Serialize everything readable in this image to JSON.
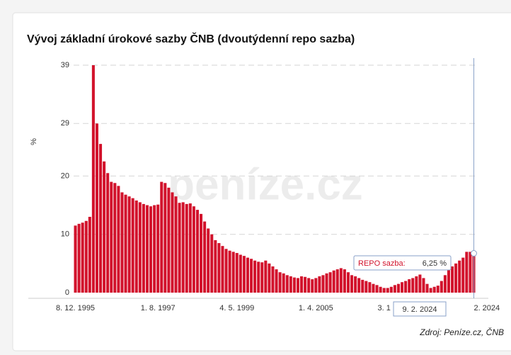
{
  "chart_data": {
    "type": "bar",
    "title": "Vývoj základní úrokové sazby ČNB (dvoutýdenní repo sazba)",
    "y_label": "%",
    "watermark": "peníze.cz",
    "source": "Zdroj: Peníze.cz, ČNB",
    "color": "#d2132c",
    "grid": true,
    "ylim": [
      0,
      39
    ],
    "yticks": [
      0,
      10,
      20,
      29,
      39
    ],
    "categories": [
      "8. 12. 1995",
      null,
      null,
      null,
      null,
      null,
      null,
      null,
      null,
      null,
      null,
      null,
      null,
      null,
      null,
      null,
      null,
      null,
      null,
      null,
      null,
      null,
      null,
      "1. 8. 1997",
      null,
      null,
      null,
      null,
      null,
      null,
      null,
      null,
      null,
      null,
      null,
      null,
      null,
      null,
      null,
      null,
      null,
      null,
      null,
      null,
      null,
      "4. 5. 1999",
      null,
      null,
      null,
      null,
      null,
      null,
      null,
      null,
      null,
      null,
      null,
      null,
      null,
      null,
      null,
      null,
      null,
      null,
      null,
      null,
      null,
      "1. 4. 2005",
      null,
      null,
      null,
      null,
      null,
      null,
      null,
      null,
      null,
      null,
      null,
      null,
      null,
      null,
      null,
      null,
      null,
      null,
      "3. 1",
      null,
      null,
      null,
      null,
      null,
      null,
      null,
      null,
      null,
      null,
      null,
      null,
      null,
      null,
      null,
      null,
      null,
      null,
      null,
      null,
      null,
      null,
      null,
      null,
      "2. 2024"
    ],
    "values": [
      11.5,
      11.8,
      12,
      12.3,
      13,
      39,
      29,
      25.5,
      22.5,
      20.5,
      19,
      18.8,
      18.3,
      17.2,
      16.8,
      16.5,
      16.2,
      15.8,
      15.5,
      15.2,
      15,
      14.8,
      15,
      15.1,
      19,
      18.8,
      18,
      17.2,
      16.5,
      15.4,
      15.5,
      15.2,
      15.3,
      14.8,
      14.2,
      13.5,
      12.2,
      11,
      10,
      9,
      8.5,
      8,
      7.5,
      7.2,
      7,
      6.8,
      6.5,
      6.3,
      6,
      5.8,
      5.5,
      5.3,
      5.2,
      5.5,
      5,
      4.5,
      4,
      3.5,
      3.3,
      3,
      2.8,
      2.6,
      2.5,
      2.8,
      2.7,
      2.5,
      2.3,
      2.5,
      2.8,
      3,
      3.3,
      3.5,
      3.8,
      4,
      4.2,
      4,
      3.5,
      3,
      2.8,
      2.5,
      2.2,
      2,
      1.8,
      1.5,
      1.3,
      1,
      0.8,
      0.8,
      1,
      1.3,
      1.5,
      1.8,
      2,
      2.3,
      2.5,
      2.8,
      3.1,
      2.5,
      1.5,
      0.8,
      1,
      1.2,
      2,
      3,
      4,
      4.5,
      5,
      5.5,
      6,
      7,
      7,
      6.25
    ],
    "tooltip": {
      "date": "9. 2. 2024",
      "series_label": "REPO sazba:",
      "value_label": "6,25 %"
    }
  }
}
